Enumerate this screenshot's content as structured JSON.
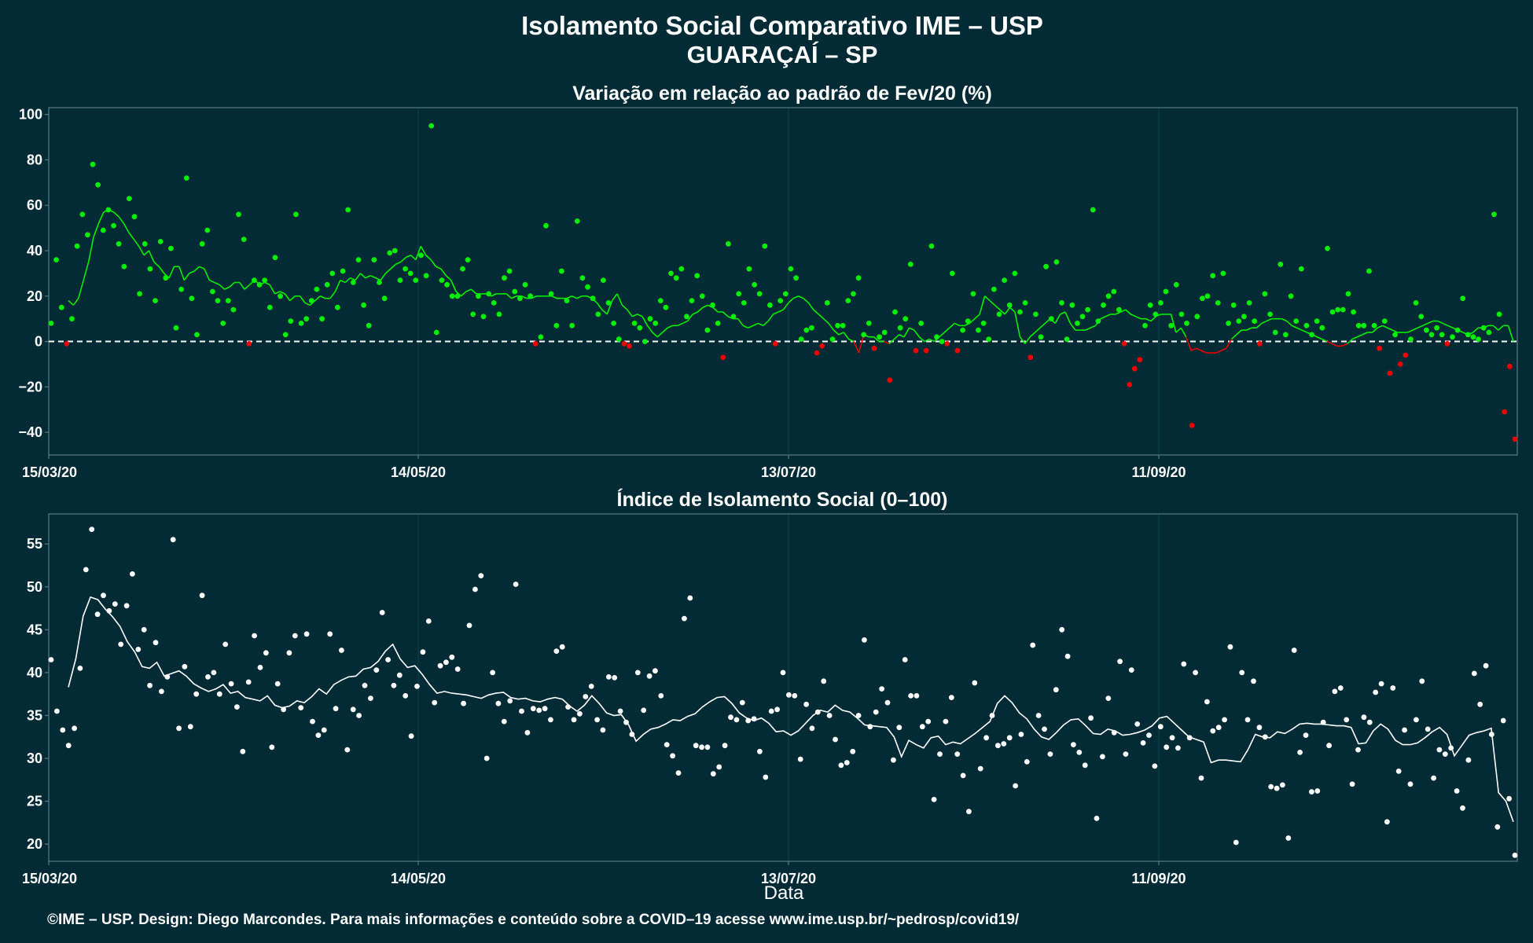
{
  "title": "Isolamento Social Comparativo IME – USP",
  "subtitle": "GUARAÇAÍ – SP",
  "caption": "©IME – USP. Design: Diego Marcondes. Para mais informações e conteúdo sobre a COVID–19 acesse www.ime.usp.br/~pedrosp/covid19/",
  "colors": {
    "background": "#022b36",
    "positive": "#00ee00",
    "negative": "#ee0000",
    "index": "#ffffff",
    "grid": "#0f4050",
    "frame": "#5a7a85"
  },
  "chart_data": [
    {
      "type": "scatter",
      "title": "Variação em relação ao padrão de Fev/20 (%)",
      "xlabel": "",
      "ylabel": "",
      "x_start": "2020-03-15",
      "x_end": "2020-11-18",
      "xticks": [
        "15/03/20",
        "14/05/20",
        "13/07/20",
        "11/09/20"
      ],
      "ylim": [
        -50,
        103
      ],
      "yticks": [
        "−40",
        "−20",
        "0",
        "20",
        "40",
        "60",
        "80",
        "100"
      ],
      "reference_line": 0,
      "series": [
        {
          "role": "daily points",
          "values": [
            8,
            36,
            15,
            -1,
            10,
            42,
            56,
            47,
            78,
            69,
            49,
            58,
            51,
            43,
            33,
            63,
            55,
            21,
            43,
            32,
            18,
            44,
            28,
            41,
            6,
            23,
            72,
            19,
            3,
            43,
            49,
            22,
            18,
            8,
            18,
            14,
            56,
            45,
            -1,
            27,
            25,
            27,
            15,
            37,
            20,
            3,
            9,
            56,
            8,
            10,
            18,
            23,
            10,
            25,
            30,
            15,
            31,
            58,
            26,
            36,
            16,
            7,
            36,
            26,
            19,
            39,
            40,
            27,
            32,
            30,
            27,
            38,
            29,
            95,
            4,
            27,
            25,
            20,
            20,
            32,
            36,
            12,
            20,
            11,
            21,
            17,
            12,
            28,
            31,
            22,
            19,
            25,
            20,
            -1,
            2,
            51,
            21,
            7,
            31,
            18,
            7,
            53,
            28,
            24,
            19,
            12,
            27,
            17,
            8,
            1,
            -1,
            -2,
            8,
            6,
            0,
            10,
            8,
            18,
            15,
            30,
            28,
            32,
            11,
            18,
            29,
            20,
            5,
            16,
            8,
            -7,
            43,
            11,
            21,
            17,
            32,
            25,
            21,
            42,
            16,
            -1,
            18,
            21,
            32,
            28,
            1,
            5,
            6,
            -5,
            -2,
            17,
            1,
            7,
            7,
            18,
            21,
            28,
            3,
            8,
            -3,
            2,
            4,
            -17,
            13,
            6,
            10,
            34,
            -4,
            8,
            -4,
            42,
            2,
            0,
            -1,
            30,
            -4,
            5,
            9,
            21,
            5,
            8,
            1,
            23,
            12,
            27,
            16,
            30,
            13,
            17,
            -7,
            12,
            2,
            33,
            10,
            35,
            17,
            1,
            16,
            8,
            11,
            14,
            58,
            9,
            16,
            20,
            22,
            14,
            -1,
            -19,
            -12,
            -8,
            7,
            16,
            12,
            17,
            22,
            7,
            25,
            12,
            8,
            -37,
            11,
            19,
            20,
            29,
            17,
            30,
            8,
            16,
            9,
            11,
            17,
            9,
            -1,
            21,
            12,
            4,
            34,
            3,
            20,
            9,
            32,
            7,
            3,
            9,
            6,
            41,
            13,
            14,
            14,
            21,
            13,
            7,
            7,
            31,
            7,
            -3,
            9,
            -14,
            3,
            -10,
            -6,
            1,
            17,
            11,
            5,
            3,
            6,
            3,
            -1,
            2,
            5,
            19,
            3,
            2,
            1,
            6,
            4,
            56,
            12,
            -31,
            -11,
            -43
          ]
        },
        {
          "role": "moving average",
          "values": [
            18,
            16,
            19,
            27,
            35,
            46,
            52,
            57,
            58,
            57,
            55,
            52,
            48,
            45,
            42,
            38,
            40,
            35,
            33,
            30,
            28,
            33,
            33,
            27,
            30,
            31,
            33,
            32,
            27,
            26,
            25,
            23,
            24,
            26,
            26,
            23,
            25,
            27,
            25,
            26,
            25,
            21,
            22,
            21,
            18,
            20,
            20,
            17,
            16,
            18,
            20,
            19,
            19,
            22,
            27,
            26,
            28,
            27,
            30,
            28,
            29,
            28,
            27,
            30,
            32,
            34,
            35,
            37,
            38,
            36,
            42,
            38,
            36,
            33,
            32,
            29,
            27,
            22,
            20,
            22,
            23,
            21,
            21,
            21,
            20,
            21,
            21,
            21,
            19,
            20,
            20,
            19,
            19,
            20,
            20,
            20,
            20,
            19,
            19,
            19,
            20,
            19,
            20,
            20,
            19,
            17,
            14,
            12,
            18,
            21,
            16,
            14,
            11,
            12,
            11,
            7,
            4,
            2,
            4,
            6,
            7,
            7,
            8,
            9,
            12,
            13,
            15,
            16,
            15,
            13,
            13,
            11,
            10,
            10,
            7,
            6,
            7,
            8,
            7,
            9,
            12,
            13,
            14,
            17,
            19,
            20,
            19,
            17,
            14,
            12,
            10,
            8,
            5,
            3,
            4,
            1,
            0,
            -5,
            3,
            2,
            2,
            0,
            0,
            -1,
            1,
            3,
            2,
            6,
            5,
            2,
            0,
            1,
            0,
            2,
            4,
            6,
            8,
            7,
            7,
            8,
            10,
            12,
            20,
            18,
            16,
            14,
            12,
            15,
            13,
            2,
            -1,
            2,
            4,
            6,
            8,
            10,
            8,
            12,
            13,
            8,
            5,
            5,
            5,
            6,
            7,
            10,
            11,
            12,
            12,
            13,
            14,
            12,
            11,
            10,
            10,
            9,
            11,
            12,
            12,
            12,
            4,
            6,
            2,
            -4,
            -3,
            -4,
            -5,
            -5,
            -5,
            -4,
            -3,
            1,
            3,
            5,
            5,
            6,
            6,
            8,
            9,
            10,
            10,
            10,
            9,
            7,
            6,
            5,
            4,
            3,
            2,
            1,
            0,
            -1,
            -2,
            -2,
            -1,
            1,
            2,
            3,
            4,
            4,
            6,
            7,
            6,
            5,
            4,
            4,
            4,
            5,
            6,
            7,
            8,
            9,
            9,
            8,
            7,
            6,
            5,
            4,
            3,
            4,
            6,
            6,
            7,
            7,
            5,
            7,
            7,
            0
          ]
        }
      ]
    },
    {
      "type": "scatter",
      "title": "Índice de Isolamento Social (0–100)",
      "xlabel": "Data",
      "ylabel": "",
      "x_start": "2020-03-15",
      "x_end": "2020-11-18",
      "xticks": [
        "15/03/20",
        "14/05/20",
        "13/07/20",
        "11/09/20"
      ],
      "ylim": [
        18,
        58.5
      ],
      "yticks": [
        "20",
        "25",
        "30",
        "35",
        "40",
        "45",
        "50",
        "55"
      ],
      "series": [
        {
          "role": "daily points",
          "values": [
            41.5,
            35.5,
            33.3,
            31.5,
            33.5,
            40.5,
            52,
            56.7,
            46.8,
            49,
            47.2,
            48,
            43.3,
            47.8,
            51.5,
            42.7,
            45,
            38.5,
            43.5,
            37.8,
            39.5,
            55.5,
            33.5,
            40.7,
            33.7,
            37.5,
            49,
            39.5,
            40,
            37.5,
            43.3,
            38.7,
            36,
            30.8,
            38.9,
            44.3,
            40.6,
            42.3,
            31.3,
            38.7,
            35.7,
            42.3,
            44.3,
            35.9,
            44.5,
            34.3,
            32.7,
            33.3,
            44.5,
            35.8,
            42.6,
            31,
            35.7,
            35,
            38.5,
            37,
            40.3,
            47,
            41.5,
            38.5,
            39.7,
            37.3,
            32.6,
            38.4,
            42.4,
            46,
            36.5,
            40.8,
            41.2,
            41.8,
            40.4,
            36.4,
            45.5,
            49.7,
            51.3,
            30,
            40,
            36.4,
            34.3,
            36.7,
            50.3,
            35.5,
            33,
            35.8,
            35.6,
            35.8,
            34.5,
            42.5,
            43,
            36,
            34.5,
            35.2,
            37.2,
            38.4,
            34.5,
            33.3,
            39.5,
            39.4,
            35.5,
            34.2,
            32.8,
            40,
            35.6,
            39.6,
            40.2,
            37.3,
            31.6,
            30.3,
            28.3,
            46.3,
            48.7,
            31.5,
            31.3,
            31.3,
            28.2,
            29,
            31.5,
            34.8,
            34.5,
            36.5,
            34.4,
            34.6,
            30.8,
            27.8,
            35.5,
            35.7,
            40,
            37.4,
            37.3,
            29.9,
            36.3,
            33.5,
            35.4,
            39,
            35,
            32.2,
            29.2,
            29.5,
            30.8,
            35,
            43.8,
            33.7,
            35.4,
            38.1,
            36.5,
            29.8,
            33.6,
            41.5,
            37.3,
            37.3,
            33.7,
            34.3,
            25.2,
            30.5,
            34.3,
            37.1,
            30.5,
            28,
            23.8,
            38.8,
            28.8,
            32.4,
            35,
            31.5,
            31.7,
            32.4,
            26.8,
            32.8,
            29.6,
            43.2,
            35,
            33.4,
            30.5,
            38,
            45,
            41.9,
            31.6,
            30.7,
            29.2,
            34.7,
            23,
            30.2,
            37,
            33,
            41.3,
            30.5,
            40.3,
            34,
            31.8,
            32.7,
            29.1,
            33.7,
            31.3,
            32.4,
            31.2,
            41,
            32.4,
            40,
            27.7,
            36.6,
            33.2,
            33.6,
            34.5,
            43,
            20.2,
            40,
            34.5,
            39,
            33.6,
            32.5,
            26.7,
            26.5,
            26.9,
            20.7,
            42.6,
            30.7,
            32.7,
            26.1,
            26.2,
            34.2,
            31.5,
            37.8,
            38.2,
            34.5,
            27,
            31,
            34.8,
            34.2,
            37.7,
            38.7,
            22.6,
            38.2,
            28.5,
            33.3,
            27,
            34.5,
            39,
            33.4,
            27.7,
            31,
            30.5,
            31.2,
            26.2,
            24.2,
            29.8,
            39.9,
            36.3,
            40.8,
            32.8,
            22,
            34.4,
            25.3,
            18.7
          ]
        },
        {
          "role": "moving average",
          "values": [
            38.3,
            41.6,
            46.6,
            48.8,
            48.5,
            47.4,
            46.5,
            45.4,
            43.6,
            42.4,
            40.7,
            40.5,
            41.2,
            39.6,
            39.9,
            40.2,
            39.6,
            38.7,
            38.2,
            37.8,
            38.1,
            38.6,
            37.6,
            37.8,
            37.1,
            36.9,
            36.7,
            37.3,
            36.2,
            35.9,
            36.1,
            36.7,
            36.5,
            37.2,
            38.1,
            37.5,
            38.6,
            39.1,
            39.5,
            39.6,
            40.4,
            40.6,
            41.3,
            42.5,
            43.3,
            41.6,
            40.6,
            40.8,
            39.8,
            38.6,
            37.6,
            37.8,
            37.6,
            37.5,
            37.4,
            37.2,
            37.0,
            37.4,
            37.6,
            37.7,
            37.1,
            36.9,
            37.0,
            36.7,
            36.6,
            36.9,
            37.1,
            36.9,
            36.1,
            35.5,
            36.2,
            37.3,
            36.4,
            35.3,
            35.0,
            35.1,
            33.9,
            32.0,
            32.8,
            33.4,
            33.6,
            34.0,
            34.5,
            34.4,
            34.9,
            35.2,
            36.0,
            36.6,
            37.1,
            37.2,
            36.4,
            35.3,
            34.7,
            34.4,
            34.7,
            34.1,
            33.1,
            33.2,
            32.7,
            33.2,
            34.1,
            35.0,
            35.6,
            35.4,
            36.2,
            35.6,
            35.4,
            34.7,
            33.9,
            33.8,
            33.7,
            33.6,
            32.5,
            30.2,
            32.1,
            31.6,
            31.2,
            32.4,
            32.6,
            31.6,
            31.9,
            31.7,
            32.3,
            32.9,
            33.6,
            34.3,
            36.4,
            37.3,
            36.5,
            35.3,
            34.6,
            33.4,
            32.5,
            32.2,
            33.0,
            33.9,
            34.5,
            34.6,
            33.8,
            32.9,
            32.8,
            33.4,
            33.2,
            32.7,
            32.8,
            33.0,
            33.3,
            33.8,
            34.7,
            34.9,
            34.1,
            33.3,
            32.5,
            32.2,
            31.9,
            29.5,
            29.8,
            29.8,
            29.7,
            29.6,
            31.0,
            32.8,
            32.5,
            32.4,
            33.1,
            32.9,
            33.4,
            34.0,
            34.1,
            34.0,
            34.0,
            33.9,
            33.8,
            33.8,
            33.6,
            31.7,
            31.8,
            33.2,
            34.0,
            33.4,
            32.1,
            31.6,
            31.6,
            31.8,
            32.4,
            33.1,
            33.6,
            32.8,
            30.3,
            31.5,
            32.7,
            33.0,
            33.2,
            33.5,
            26.0,
            25.0,
            22.6
          ]
        }
      ]
    }
  ]
}
